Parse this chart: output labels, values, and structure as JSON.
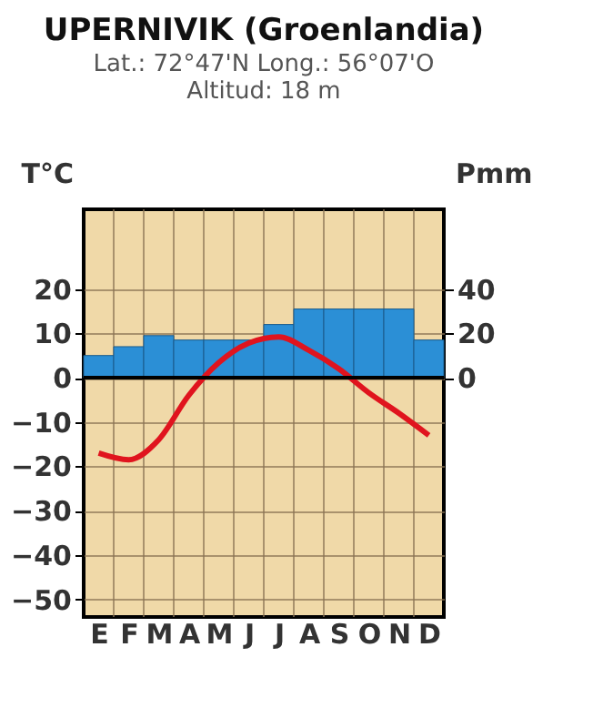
{
  "chart_data": {
    "type": "bar",
    "title": "UPERNIVIK (Groenlandia)",
    "subtitle": "Lat.: 72°47'N  Long.: 56°07'O\nAltitud: 18 m",
    "ylabel": "T°C",
    "y2label": "Pmm",
    "categories": [
      "E",
      "F",
      "M",
      "A",
      "M",
      "J",
      "J",
      "A",
      "S",
      "O",
      "N",
      "D"
    ],
    "series": [
      {
        "axis": "y2",
        "color": "#2b8fd6",
        "values": [
          10,
          14,
          19,
          17,
          17,
          17,
          24,
          31,
          31,
          31,
          31,
          17
        ]
      },
      {
        "type": "line",
        "axis": "y",
        "color": "#e0141e",
        "values": [
          -17,
          -18.5,
          -14,
          -4,
          3.4,
          7.8,
          9.2,
          6.2,
          2,
          -3.4,
          -8,
          -13
        ]
      }
    ],
    "ylim": [
      -54,
      38
    ],
    "yticks": [
      -50,
      -40,
      -30,
      -20,
      -10,
      0,
      10,
      20
    ],
    "y2lim": [
      -108,
      76
    ],
    "y2ticks": [
      0,
      20,
      40
    ],
    "ref_lines": [
      {
        "axis": "y",
        "value": 0,
        "color": "#000000"
      }
    ],
    "grid": true,
    "marker": "none",
    "line_style": "solid"
  }
}
